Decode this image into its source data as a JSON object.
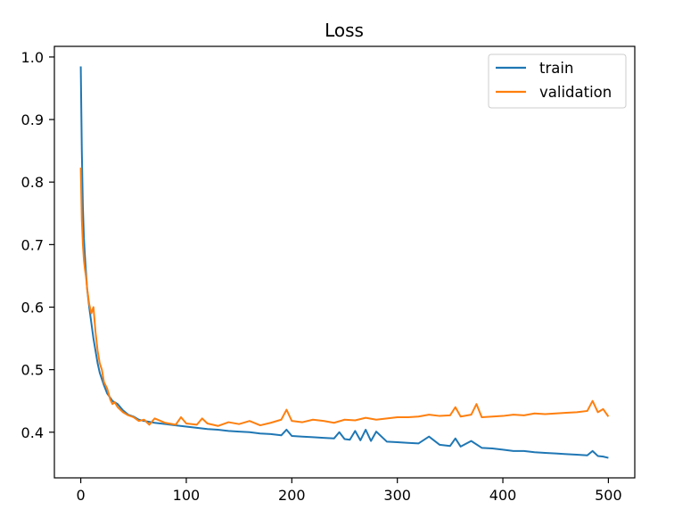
{
  "chart_data": {
    "type": "line",
    "title": "Loss",
    "xlabel": "",
    "ylabel": "",
    "xlim": [
      -25,
      525
    ],
    "ylim": [
      0.327,
      1.017
    ],
    "xticks": [
      0,
      100,
      200,
      300,
      400,
      500
    ],
    "xtick_labels": [
      "0",
      "100",
      "200",
      "300",
      "400",
      "500"
    ],
    "yticks": [
      0.4,
      0.5,
      0.6,
      0.7,
      0.8,
      0.9,
      1.0
    ],
    "ytick_labels": [
      "0.4",
      "0.5",
      "0.6",
      "0.7",
      "0.8",
      "0.9",
      "1.0"
    ],
    "grid": false,
    "legend_position": "top-right",
    "series": [
      {
        "name": "train",
        "color": "#1f77b4",
        "x": [
          0,
          1,
          2,
          3,
          4,
          5,
          6,
          8,
          10,
          12,
          14,
          16,
          18,
          20,
          22,
          25,
          28,
          30,
          32,
          35,
          40,
          45,
          50,
          55,
          60,
          70,
          80,
          90,
          100,
          110,
          120,
          130,
          140,
          150,
          160,
          170,
          180,
          190,
          195,
          200,
          210,
          220,
          230,
          240,
          245,
          250,
          255,
          260,
          265,
          270,
          275,
          280,
          290,
          300,
          310,
          320,
          330,
          340,
          350,
          355,
          360,
          370,
          380,
          390,
          400,
          410,
          420,
          430,
          440,
          450,
          460,
          470,
          480,
          485,
          490,
          495,
          500
        ],
        "y": [
          0.985,
          0.85,
          0.76,
          0.71,
          0.68,
          0.655,
          0.63,
          0.6,
          0.575,
          0.55,
          0.53,
          0.51,
          0.495,
          0.485,
          0.475,
          0.462,
          0.455,
          0.45,
          0.448,
          0.445,
          0.435,
          0.428,
          0.425,
          0.42,
          0.418,
          0.415,
          0.413,
          0.411,
          0.409,
          0.407,
          0.405,
          0.404,
          0.402,
          0.401,
          0.4,
          0.398,
          0.397,
          0.395,
          0.404,
          0.394,
          0.393,
          0.392,
          0.391,
          0.39,
          0.4,
          0.389,
          0.388,
          0.402,
          0.387,
          0.404,
          0.386,
          0.401,
          0.385,
          0.384,
          0.383,
          0.382,
          0.393,
          0.38,
          0.378,
          0.39,
          0.377,
          0.386,
          0.375,
          0.374,
          0.372,
          0.37,
          0.37,
          0.368,
          0.367,
          0.366,
          0.365,
          0.364,
          0.363,
          0.37,
          0.362,
          0.361,
          0.359
        ]
      },
      {
        "name": "validation",
        "color": "#ff7f0e",
        "x": [
          0,
          1,
          2,
          3,
          4,
          5,
          6,
          8,
          10,
          12,
          14,
          16,
          18,
          20,
          22,
          25,
          28,
          30,
          32,
          35,
          40,
          45,
          50,
          55,
          60,
          65,
          70,
          80,
          90,
          95,
          100,
          110,
          115,
          120,
          130,
          140,
          150,
          160,
          170,
          180,
          190,
          195,
          200,
          210,
          220,
          230,
          240,
          250,
          260,
          270,
          280,
          290,
          300,
          310,
          320,
          330,
          340,
          350,
          355,
          360,
          370,
          375,
          380,
          390,
          400,
          410,
          420,
          430,
          440,
          450,
          460,
          470,
          480,
          485,
          490,
          495,
          500
        ],
        "y": [
          0.823,
          0.74,
          0.7,
          0.675,
          0.66,
          0.648,
          0.63,
          0.605,
          0.59,
          0.6,
          0.56,
          0.53,
          0.51,
          0.5,
          0.48,
          0.47,
          0.452,
          0.445,
          0.448,
          0.44,
          0.432,
          0.427,
          0.424,
          0.418,
          0.42,
          0.412,
          0.422,
          0.415,
          0.412,
          0.424,
          0.414,
          0.412,
          0.422,
          0.414,
          0.41,
          0.416,
          0.413,
          0.418,
          0.411,
          0.415,
          0.42,
          0.436,
          0.418,
          0.416,
          0.42,
          0.418,
          0.415,
          0.42,
          0.419,
          0.423,
          0.42,
          0.422,
          0.424,
          0.424,
          0.425,
          0.428,
          0.426,
          0.427,
          0.44,
          0.425,
          0.428,
          0.445,
          0.424,
          0.425,
          0.426,
          0.428,
          0.427,
          0.43,
          0.429,
          0.43,
          0.431,
          0.432,
          0.434,
          0.45,
          0.432,
          0.437,
          0.425
        ]
      }
    ]
  }
}
